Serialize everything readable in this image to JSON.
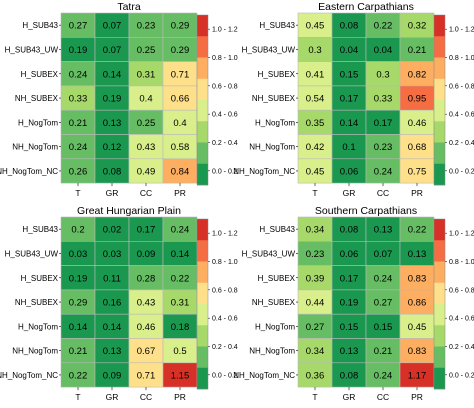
{
  "legend": {
    "colors": [
      "#1a9850",
      "#66bd63",
      "#a6d96a",
      "#d9ef8b",
      "#fee08b",
      "#fdae61",
      "#f46d43",
      "#d73027"
    ],
    "bands": [
      {
        "label": "0.0 - 0.2",
        "color": "#1a9850"
      },
      {
        "label": "0.2 - 0.4",
        "color": "#a6d96a"
      },
      {
        "label": "0.4 - 0.6",
        "color": "#d9ef8b"
      },
      {
        "label": "0.6 - 0.8",
        "color": "#fee08b"
      },
      {
        "label": "0.8 - 1.0",
        "color": "#fdae61"
      },
      {
        "label": "1.0 - 1.2",
        "color": "#d73027"
      }
    ]
  },
  "chart_data": [
    {
      "type": "heatmap",
      "title": "Tatra",
      "rows": [
        "H_SUB43",
        "H_SUB43_UW",
        "H_SUBEX",
        "NH_SUBEX",
        "H_NogTom",
        "NH_NogTom",
        "NH_NogTom_NC"
      ],
      "columns": [
        "T",
        "GR",
        "CC",
        "PR"
      ],
      "values": [
        [
          0.27,
          0.07,
          0.23,
          0.29
        ],
        [
          0.19,
          0.07,
          0.25,
          0.29
        ],
        [
          0.24,
          0.14,
          0.31,
          0.71
        ],
        [
          0.33,
          0.19,
          "0.4",
          0.66
        ],
        [
          0.21,
          0.13,
          0.25,
          "0.4"
        ],
        [
          0.24,
          0.12,
          0.43,
          0.58
        ],
        [
          0.26,
          0.08,
          0.49,
          0.84
        ]
      ],
      "legend_bands": [
        "1.0 - 1.2",
        "0.8 - 1.0",
        "0.6 - 0.8",
        "0.4 - 0.6",
        "0.2 - 0.4",
        "0.0 - 0.2"
      ]
    },
    {
      "type": "heatmap",
      "title": "Eastern Carpathians",
      "rows": [
        "H_SUB43",
        "H_SUB43_UW",
        "H_SUBEX",
        "NH_SUBEX",
        "H_NogTom",
        "NH_NogTom",
        "NH_NogTom_NC"
      ],
      "columns": [
        "T",
        "GR",
        "CC",
        "PR"
      ],
      "values": [
        [
          0.45,
          0.08,
          0.22,
          0.32
        ],
        [
          "0.3",
          0.04,
          0.04,
          0.21
        ],
        [
          0.41,
          0.15,
          "0.3",
          0.82
        ],
        [
          0.54,
          0.17,
          0.33,
          0.95
        ],
        [
          0.35,
          0.14,
          0.17,
          0.46
        ],
        [
          0.42,
          "0.1",
          0.23,
          0.68
        ],
        [
          0.45,
          0.06,
          0.24,
          0.75
        ]
      ],
      "legend_bands": [
        "1.0 - 1.2",
        "0.8 - 1.0",
        "0.6 - 0.8",
        "0.4 - 0.6",
        "0.2 - 0.4",
        "0.0 - 0.2"
      ]
    },
    {
      "type": "heatmap",
      "title": "Great Hungarian Plain",
      "rows": [
        "H_SUB43",
        "H_SUB43_UW",
        "H_SUBEX",
        "NH_SUBEX",
        "H_NogTom",
        "NH_NogTom",
        "NH_NogTom_NC"
      ],
      "columns": [
        "T",
        "GR",
        "CC",
        "PR"
      ],
      "values": [
        [
          "0.2",
          0.02,
          0.17,
          0.24
        ],
        [
          0.03,
          0.03,
          0.09,
          0.14
        ],
        [
          0.19,
          0.11,
          0.28,
          0.22
        ],
        [
          0.29,
          0.16,
          0.43,
          0.31
        ],
        [
          0.14,
          0.14,
          0.46,
          0.18
        ],
        [
          0.21,
          0.13,
          0.67,
          "0.5"
        ],
        [
          0.22,
          0.09,
          0.71,
          1.15
        ]
      ],
      "legend_bands": [
        "1.0 - 1.2",
        "0.8 - 1.0",
        "0.6 - 0.8",
        "0.4 - 0.6",
        "0.2 - 0.4",
        "0.0 - 0.2"
      ]
    },
    {
      "type": "heatmap",
      "title": "Southern Carpathians",
      "rows": [
        "H_SUB43",
        "H_SUB43_UW",
        "H_SUBEX",
        "NH_SUBEX",
        "H_NogTom",
        "NH_NogTom",
        "NH_NogTom_NC"
      ],
      "columns": [
        "T",
        "GR",
        "CC",
        "PR"
      ],
      "values": [
        [
          0.34,
          0.08,
          0.13,
          0.22
        ],
        [
          0.23,
          0.06,
          0.07,
          0.13
        ],
        [
          0.39,
          0.17,
          0.24,
          0.83
        ],
        [
          0.44,
          0.19,
          0.27,
          0.86
        ],
        [
          0.27,
          0.15,
          0.15,
          0.45
        ],
        [
          0.34,
          0.13,
          0.21,
          0.83
        ],
        [
          0.36,
          0.08,
          0.24,
          1.17
        ]
      ],
      "legend_bands": [
        "1.0 - 1.2",
        "0.8 - 1.0",
        "0.6 - 0.8",
        "0.4 - 0.6",
        "0.2 - 0.4",
        "0.0 - 0.2"
      ]
    }
  ]
}
